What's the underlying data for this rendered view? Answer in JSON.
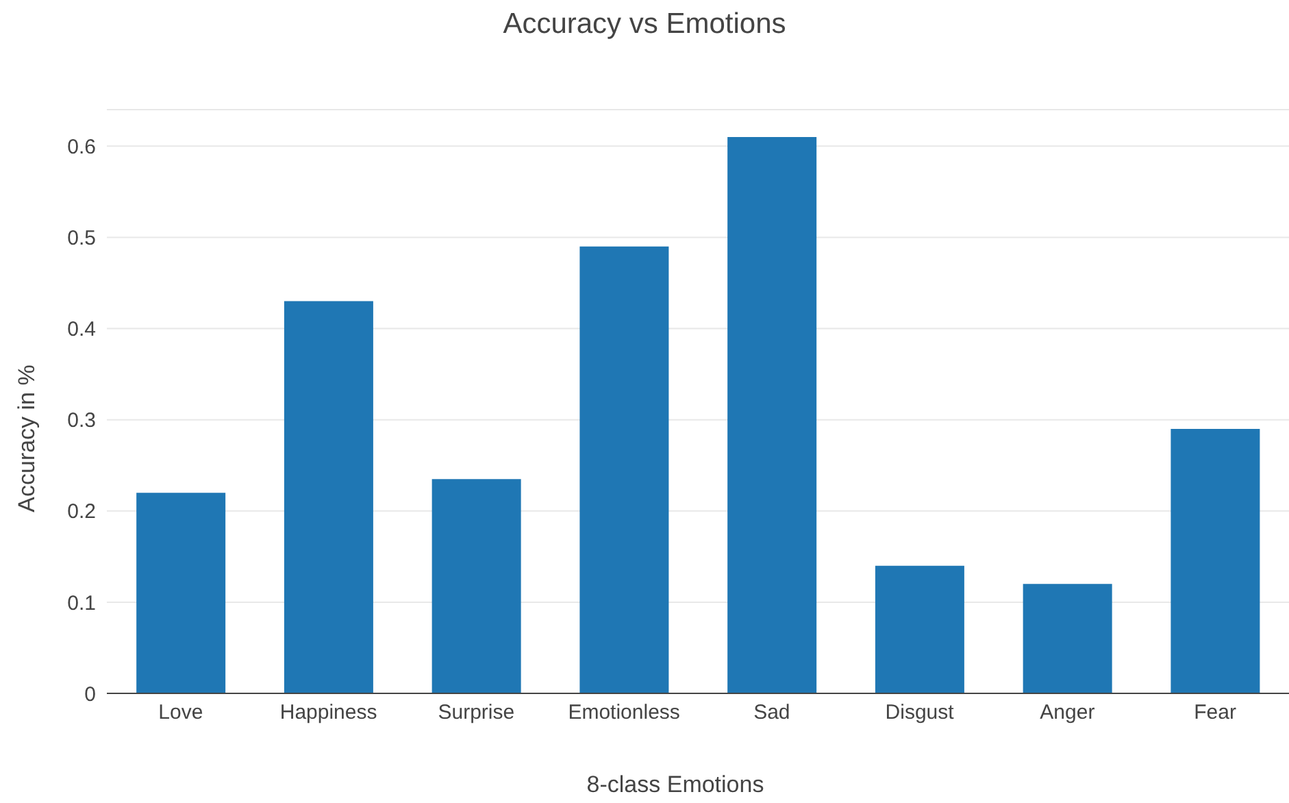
{
  "chart_data": {
    "type": "bar",
    "title": "Accuracy vs Emotions",
    "xlabel": "8-class Emotions",
    "ylabel": "Accuracy in %",
    "categories": [
      "Love",
      "Happiness",
      "Surprise",
      "Emotionless",
      "Sad",
      "Disgust",
      "Anger",
      "Fear"
    ],
    "series": [
      {
        "color": "#1f77b4",
        "values": [
          0.22,
          0.43,
          0.235,
          0.49,
          0.61,
          0.14,
          0.12,
          0.29
        ]
      }
    ],
    "ylim": [
      0,
      0.64
    ],
    "yticks": [
      0,
      0.1,
      0.2,
      0.3,
      0.4,
      0.5,
      0.6
    ],
    "grid": "y",
    "legend": false
  }
}
